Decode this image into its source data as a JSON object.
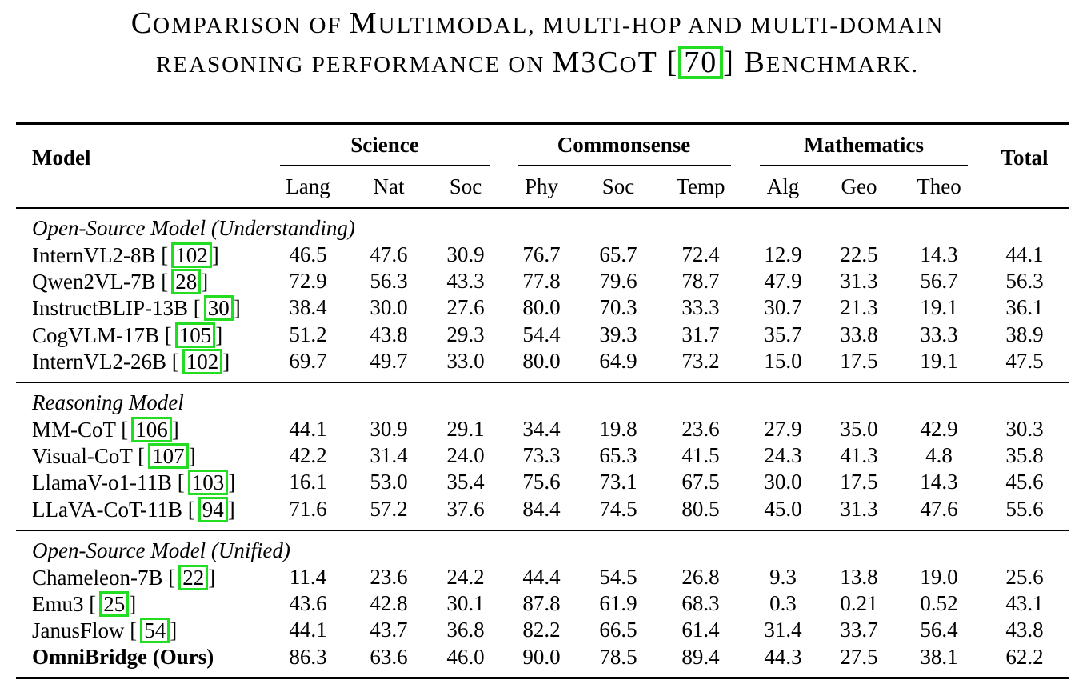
{
  "caption": {
    "line1": [
      {
        "big": "C",
        "small": "OMPARISON OF "
      },
      {
        "big": "M",
        "small": "ULTIMODAL, MULTI-HOP AND MULTI-DOMAIN"
      }
    ],
    "line2_a": "REASONING PERFORMANCE ON ",
    "line2_b": "M3C",
    "line2_c": "O",
    "line2_d": "T [",
    "cite": "70",
    "line2_e": "] B",
    "line2_f": "ENCHMARK."
  },
  "headers": {
    "model": "Model",
    "science": "Science",
    "commonsense": "Commonsense",
    "mathematics": "Mathematics",
    "total": "Total",
    "sub": [
      "Lang",
      "Nat",
      "Soc",
      "Phy",
      "Soc",
      "Temp",
      "Alg",
      "Geo",
      "Theo"
    ]
  },
  "groups": [
    {
      "title": "Open-Source Model (Understanding)",
      "rows": [
        {
          "name": "InternVL2-8B [",
          "ref": "102",
          "close": "]",
          "values": [
            "46.5",
            "47.6",
            "30.9",
            "76.7",
            "65.7",
            "72.4",
            "12.9",
            "22.5",
            "14.3",
            "44.1"
          ]
        },
        {
          "name": "Qwen2VL-7B [",
          "ref": "28",
          "close": "]",
          "values": [
            "72.9",
            "56.3",
            "43.3",
            "77.8",
            "79.6",
            "78.7",
            "47.9",
            "31.3",
            "56.7",
            "56.3"
          ]
        },
        {
          "name": "InstructBLIP-13B [",
          "ref": "30",
          "close": "]",
          "values": [
            "38.4",
            "30.0",
            "27.6",
            "80.0",
            "70.3",
            "33.3",
            "30.7",
            "21.3",
            "19.1",
            "36.1"
          ]
        },
        {
          "name": "CogVLM-17B [",
          "ref": "105",
          "close": "]",
          "values": [
            "51.2",
            "43.8",
            "29.3",
            "54.4",
            "39.3",
            "31.7",
            "35.7",
            "33.8",
            "33.3",
            "38.9"
          ]
        },
        {
          "name": "InternVL2-26B [",
          "ref": "102",
          "close": "]",
          "values": [
            "69.7",
            "49.7",
            "33.0",
            "80.0",
            "64.9",
            "73.2",
            "15.0",
            "17.5",
            "19.1",
            "47.5"
          ]
        }
      ]
    },
    {
      "title": "Reasoning Model",
      "rows": [
        {
          "name": "MM-CoT [",
          "ref": "106",
          "close": "]",
          "values": [
            "44.1",
            "30.9",
            "29.1",
            "34.4",
            "19.8",
            "23.6",
            "27.9",
            "35.0",
            "42.9",
            "30.3"
          ]
        },
        {
          "name": "Visual-CoT [",
          "ref": "107",
          "close": "]",
          "values": [
            "42.2",
            "31.4",
            "24.0",
            "73.3",
            "65.3",
            "41.5",
            "24.3",
            "41.3",
            "4.8",
            "35.8"
          ]
        },
        {
          "name": "LlamaV-o1-11B [",
          "ref": "103",
          "close": "]",
          "values": [
            "16.1",
            "53.0",
            "35.4",
            "75.6",
            "73.1",
            "67.5",
            "30.0",
            "17.5",
            "14.3",
            "45.6"
          ]
        },
        {
          "name": "LLaVA-CoT-11B [",
          "ref": "94",
          "close": "]",
          "values": [
            "71.6",
            "57.2",
            "37.6",
            "84.4",
            "74.5",
            "80.5",
            "45.0",
            "31.3",
            "47.6",
            "55.6"
          ]
        }
      ]
    },
    {
      "title": "Open-Source Model (Unified)",
      "rows": [
        {
          "name": "Chameleon-7B [",
          "ref": "22",
          "close": "]",
          "values": [
            "11.4",
            "23.6",
            "24.2",
            "44.4",
            "54.5",
            "26.8",
            "9.3",
            "13.8",
            "19.0",
            "25.6"
          ]
        },
        {
          "name": "Emu3 [",
          "ref": "25",
          "close": "]",
          "values": [
            "43.6",
            "42.8",
            "30.1",
            "87.8",
            "61.9",
            "68.3",
            "0.3",
            "0.21",
            "0.52",
            "43.1"
          ]
        },
        {
          "name": "JanusFlow [",
          "ref": "54",
          "close": "]",
          "values": [
            "44.1",
            "43.7",
            "36.8",
            "82.2",
            "66.5",
            "61.4",
            "31.4",
            "33.7",
            "56.4",
            "43.8"
          ]
        },
        {
          "name": "OmniBridge (Ours)",
          "ref": "",
          "close": "",
          "bold": true,
          "values": [
            "86.3",
            "63.6",
            "46.0",
            "90.0",
            "78.5",
            "89.4",
            "44.3",
            "27.5",
            "38.1",
            "62.2"
          ]
        }
      ]
    }
  ]
}
